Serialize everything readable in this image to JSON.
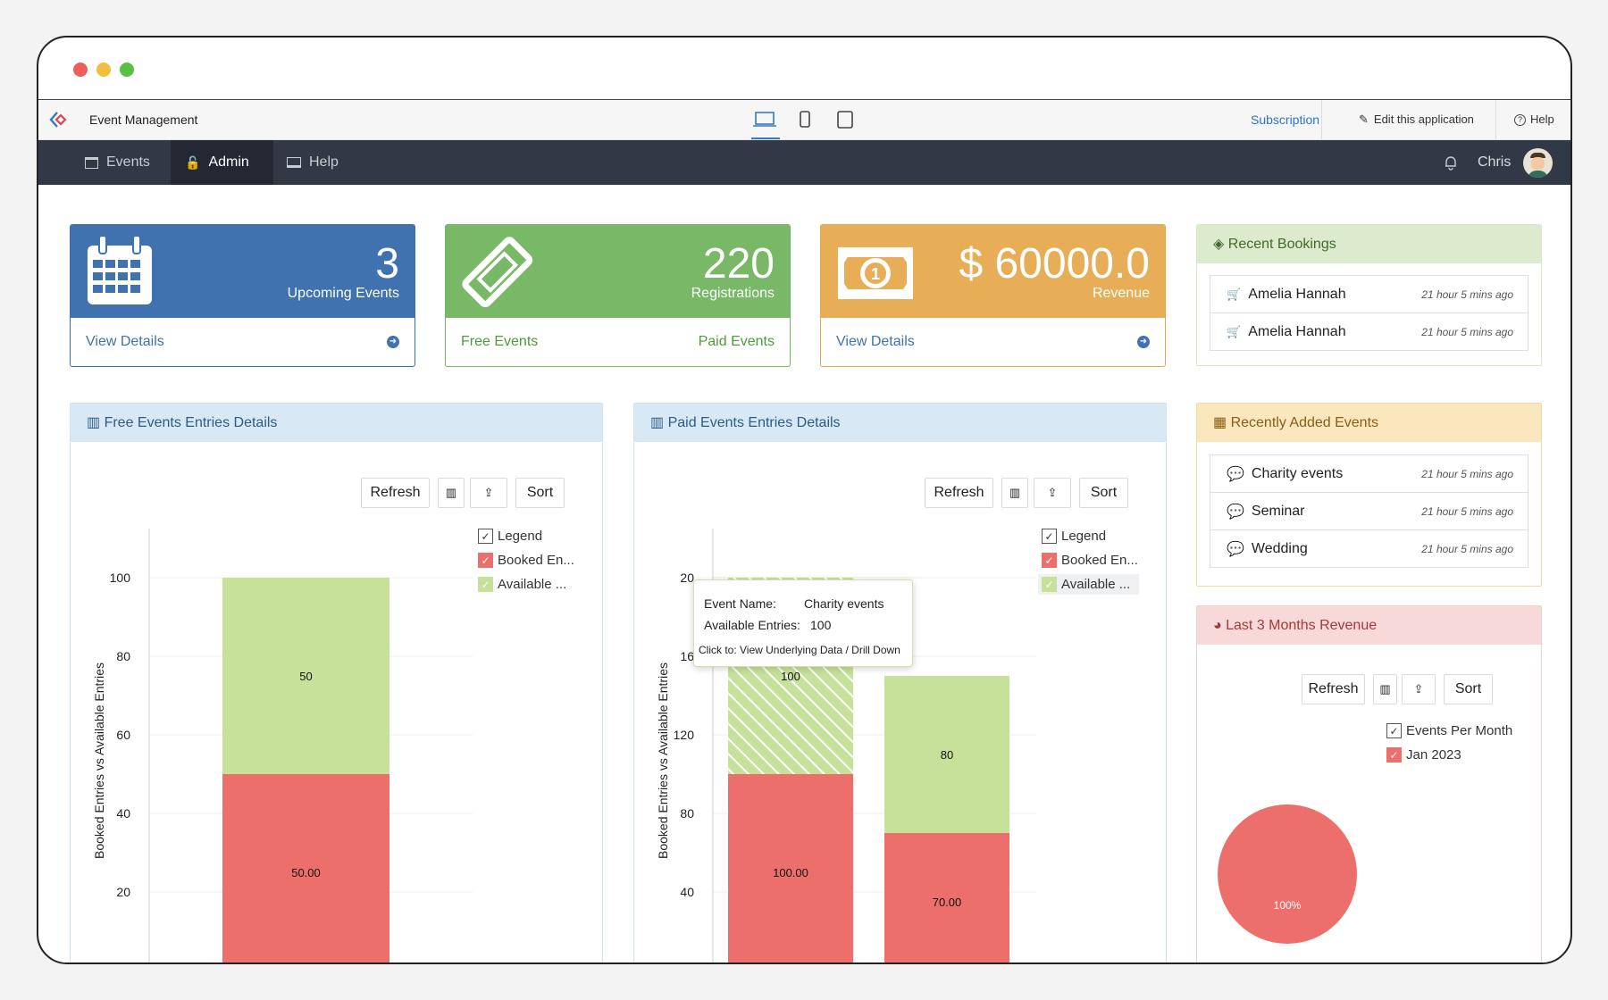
{
  "app": {
    "title": "Event Management"
  },
  "topbar": {
    "subscription": "Subscription",
    "edit": "Edit this application",
    "help": "Help"
  },
  "nav": {
    "items": [
      "Events",
      "Admin",
      "Help"
    ],
    "user": "Chris"
  },
  "cards": {
    "upcoming": {
      "value": "3",
      "label": "Upcoming Events",
      "link": "View Details"
    },
    "registrations": {
      "value": "220",
      "label": "Registrations",
      "link_left": "Free Events",
      "link_right": "Paid Events"
    },
    "revenue": {
      "value": "$ 60000.0",
      "label": "Revenue",
      "link": "View Details"
    }
  },
  "toolbar": {
    "refresh": "Refresh",
    "sort": "Sort"
  },
  "free_chart": {
    "title": "Free Events Entries Details",
    "legend_title": "Legend",
    "legend": [
      "Booked En...",
      "Available ..."
    ],
    "ylabel": "Booked Entries vs Available Entries",
    "ticks": [
      "20",
      "40",
      "60",
      "80",
      "100"
    ],
    "labels": [
      "50.00",
      "50"
    ]
  },
  "paid_chart": {
    "title": "Paid Events Entries Details",
    "legend_title": "Legend",
    "legend": [
      "Booked En...",
      "Available ..."
    ],
    "ylabel": "Booked Entries vs Available Entries",
    "ticks": [
      "40",
      "80",
      "120",
      "16",
      "20"
    ],
    "labels": [
      "100.00",
      "100",
      "70.00",
      "80"
    ],
    "tooltip": {
      "name_label": "Event Name:",
      "name_value": "Charity events",
      "entries_label": "Available Entries:",
      "entries_value": "100",
      "hint": "Click to: View Underlying Data / Drill Down"
    }
  },
  "revenue_chart": {
    "title": "Last 3 Months Revenue",
    "legend_title": "Events Per Month",
    "legend": [
      "Jan 2023"
    ],
    "slice_label": "100%"
  },
  "recent_bookings": {
    "title": "Recent Bookings",
    "items": [
      {
        "name": "Amelia Hannah",
        "time": "21 hour 5 mins ago"
      },
      {
        "name": "Amelia Hannah",
        "time": "21 hour 5 mins ago"
      }
    ]
  },
  "recent_events": {
    "title": "Recently Added Events",
    "items": [
      {
        "name": "Charity events",
        "time": "21 hour 5 mins ago"
      },
      {
        "name": "Seminar",
        "time": "21 hour 5 mins ago"
      },
      {
        "name": "Wedding",
        "time": "21 hour 5 mins ago"
      }
    ]
  },
  "colors": {
    "blue": "#3f72af",
    "green": "#78b866",
    "orange": "#e8ae57",
    "booked": "#ec6f6b",
    "available": "#c6e29a",
    "nav": "#313846"
  },
  "chart_data": [
    {
      "type": "bar",
      "stacked": true,
      "title": "Free Events Entries Details",
      "ylabel": "Booked Entries vs Available Entries",
      "categories": [
        ""
      ],
      "series": [
        {
          "name": "Booked En...",
          "values": [
            50
          ]
        },
        {
          "name": "Available ...",
          "values": [
            50
          ]
        }
      ],
      "ylim": [
        0,
        110
      ],
      "grid": true,
      "legend": "right"
    },
    {
      "type": "bar",
      "stacked": true,
      "title": "Paid Events Entries Details",
      "ylabel": "Booked Entries vs Available Entries",
      "categories": [
        "Charity events",
        ""
      ],
      "series": [
        {
          "name": "Booked En...",
          "values": [
            100,
            70
          ]
        },
        {
          "name": "Available ...",
          "values": [
            100,
            80
          ]
        }
      ],
      "ylim": [
        0,
        210
      ],
      "grid": true,
      "legend": "right"
    },
    {
      "type": "pie",
      "title": "Last 3 Months Revenue",
      "categories": [
        "Jan 2023"
      ],
      "values": [
        100
      ],
      "legend": "top-right"
    }
  ]
}
